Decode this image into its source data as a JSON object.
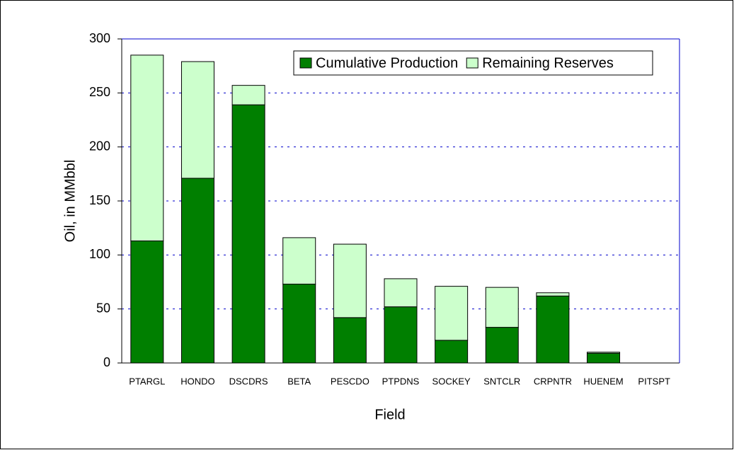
{
  "chart_data": {
    "type": "stacked_bar",
    "xlabel": "Field",
    "ylabel": "Oil, in MMbbl",
    "categories": [
      "PTARGL",
      "HONDO",
      "DSCDRS",
      "BETA",
      "PESCDO",
      "PTPDNS",
      "SOCKEY",
      "SNTCLR",
      "CRPNTR",
      "HUENEM",
      "PITSPT"
    ],
    "series": [
      {
        "name": "Cumulative Production",
        "color": "#007f00",
        "values": [
          113,
          171,
          239,
          73,
          42,
          52,
          21,
          33,
          62,
          9,
          0
        ]
      },
      {
        "name": "Remaining Reserves",
        "color": "#ccffcc",
        "values": [
          172,
          108,
          18,
          43,
          68,
          26,
          50,
          37,
          3,
          1,
          0
        ]
      }
    ],
    "ylim": [
      0,
      300
    ],
    "yticks": [
      0,
      50,
      100,
      150,
      200,
      250,
      300
    ],
    "grid": true,
    "legend": "top-right"
  }
}
